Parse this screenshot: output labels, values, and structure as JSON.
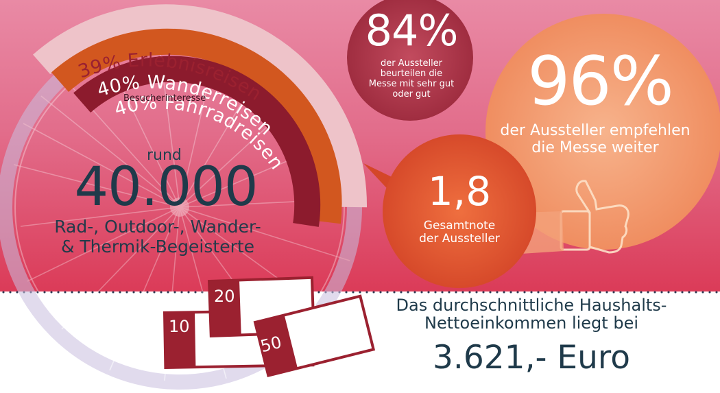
{
  "interests": {
    "erlebnis": "39% Erlebnisreisen",
    "wander": "40% Wanderreisen",
    "fahrrad": "40% Fahrradreisen",
    "caption": "Besucherinteresse"
  },
  "visitors": {
    "prefix": "rund",
    "number": "40.000",
    "line1": "Rad-, Outdoor-, Wander-",
    "line2": "& Thermik-Begeisterte"
  },
  "stat84": {
    "value": "84%",
    "line1": "der Aussteller",
    "line2": "beurteilen die",
    "line3": "Messe mit sehr gut",
    "line4": "oder gut"
  },
  "stat96": {
    "value": "96%",
    "line1": "der Aussteller empfehlen",
    "line2": "die Messe weiter"
  },
  "grade": {
    "value": "1,8",
    "line1": "Gesamtnote",
    "line2": "der Aussteller"
  },
  "income": {
    "line1": "Das durchschnittliche Haushalts-",
    "line2": "Nettoeinkommen liegt bei",
    "amount": "3.621,- Euro"
  },
  "bills": {
    "b10": "10",
    "b20": "20",
    "b50": "50"
  },
  "colors": {
    "dark_navy": "#1f3a4a",
    "erlebnis_band": "#eec3c9",
    "wander_band": "#d2571f",
    "fahrrad_band": "#8c1b2d",
    "bill_red": "#9b2130"
  },
  "icons": [
    "bicycle-wheel-icon",
    "thumbs-up-icon",
    "banknote-icon",
    "speech-bubble-icon"
  ]
}
